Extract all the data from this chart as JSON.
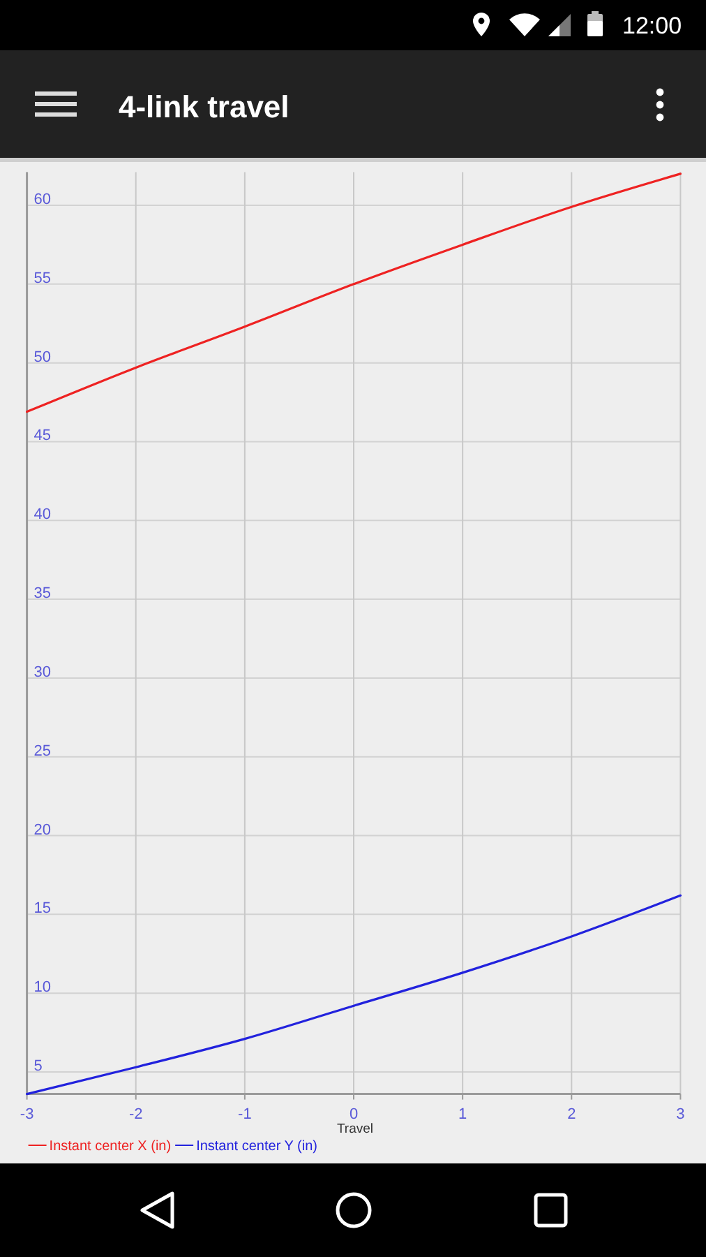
{
  "chart_data": {
    "type": "line",
    "title": "4-link travel",
    "xlabel": "Travel",
    "x": [
      -3,
      -2,
      -1,
      0,
      1,
      2,
      3
    ],
    "series": [
      {
        "name": "Instant center X (in)",
        "color": "#ee2222",
        "values": [
          46.9,
          49.7,
          52.3,
          55.0,
          57.5,
          59.9,
          62.0
        ]
      },
      {
        "name": "Instant center Y (in)",
        "color": "#2222dd",
        "values": [
          3.6,
          5.3,
          7.1,
          9.2,
          11.3,
          13.6,
          16.2
        ]
      }
    ],
    "xlim": [
      -3,
      3
    ],
    "xticks": [
      -3,
      -2,
      -1,
      0,
      1,
      2,
      3
    ],
    "ylim": [
      3.6,
      62.1
    ],
    "yticks": [
      5,
      10,
      15,
      20,
      25,
      30,
      35,
      40,
      45,
      50,
      55,
      60
    ],
    "grid": true,
    "legend": "bottom left",
    "annotations": [
      "12:00"
    ]
  }
}
